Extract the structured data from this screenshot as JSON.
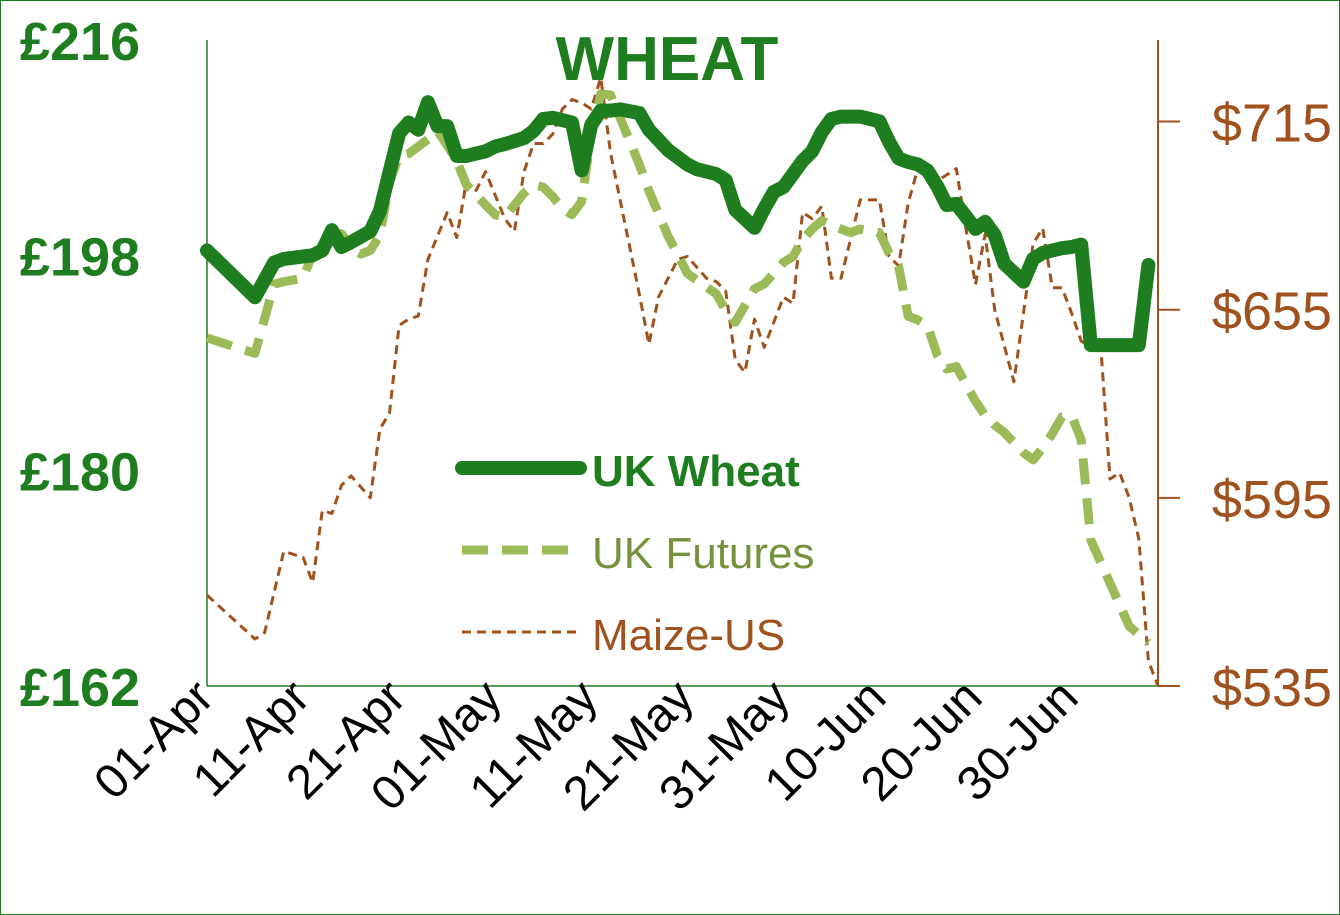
{
  "chart_data": {
    "type": "line",
    "title": "WHEAT",
    "x_tick_labels": [
      "01-Apr",
      "11-Apr",
      "21-Apr",
      "01-May",
      "11-May",
      "21-May",
      "31-May",
      "10-Jun",
      "20-Jun",
      "30-Jun"
    ],
    "y_left": {
      "tick_labels": [
        "£216",
        "£198",
        "£180",
        "£162"
      ],
      "ticks": [
        216,
        198,
        180,
        162
      ],
      "range": [
        162,
        216
      ]
    },
    "y_right": {
      "tick_labels": [
        "$715",
        "$655",
        "$595",
        "$535"
      ],
      "ticks": [
        715,
        655,
        595,
        535
      ],
      "range": [
        535,
        741
      ]
    },
    "grid": false,
    "legend_position": "center",
    "series": [
      {
        "name": "UK Wheat",
        "axis": "left",
        "color": "#1e7d1e",
        "style": "solid-thick",
        "x": [
          0,
          5,
          7,
          8,
          10,
          11,
          12,
          13,
          14,
          15,
          17,
          18,
          20,
          21,
          22,
          23,
          24,
          25,
          26,
          27,
          28,
          29,
          30,
          31,
          33,
          34,
          35,
          36,
          37,
          38,
          39,
          40,
          41,
          42,
          43,
          45,
          46,
          48,
          50,
          51,
          53,
          54,
          55,
          57,
          58,
          59,
          60,
          61,
          62,
          63,
          64,
          65,
          66,
          67,
          68,
          70,
          71,
          72,
          73,
          74,
          75,
          76,
          77,
          78,
          80,
          81,
          82,
          83,
          85,
          86,
          87,
          88,
          89,
          90,
          91,
          92,
          96,
          97,
          98
        ],
        "y": [
          198.4,
          194.5,
          197.4,
          197.7,
          197.9,
          198,
          198.4,
          200.1,
          198.7,
          199.1,
          200,
          201.7,
          208.2,
          209.1,
          208.5,
          210.8,
          208.8,
          208.8,
          206.3,
          206.3,
          206.5,
          206.7,
          207.1,
          207.3,
          207.8,
          208.4,
          209.4,
          209.5,
          209.3,
          209.1,
          205.1,
          208.9,
          210.1,
          210.1,
          210.2,
          209.9,
          208.5,
          206.8,
          205.6,
          205.2,
          204.8,
          204.3,
          201.8,
          200.3,
          201.9,
          203.3,
          203.7,
          204.8,
          205.9,
          206.7,
          208.3,
          209.4,
          209.6,
          209.6,
          209.6,
          209.2,
          207.5,
          206.1,
          205.8,
          205.6,
          205.1,
          203.8,
          202.2,
          202.3,
          200.2,
          200.8,
          199.7,
          197.3,
          195.8,
          197.7,
          198.2,
          198.4,
          198.6,
          198.7,
          198.9,
          190.5,
          190.5,
          190.5,
          197.2
        ]
      },
      {
        "name": "UK Futures",
        "axis": "left",
        "color": "#9bbb59",
        "style": "dashed",
        "x": [
          0,
          5,
          7,
          8,
          10,
          11,
          12,
          13,
          14,
          15,
          16,
          17,
          18,
          19,
          20,
          21,
          22,
          23,
          24,
          25,
          26,
          27,
          28,
          29,
          30,
          31,
          33,
          34,
          35,
          36,
          37,
          38,
          39,
          40,
          41,
          42,
          43,
          45,
          46,
          48,
          50,
          51,
          53,
          54,
          55,
          57,
          58,
          59,
          60,
          61,
          62,
          63,
          64,
          65,
          66,
          67,
          68,
          70,
          71,
          72,
          73,
          74,
          75,
          76,
          77,
          78,
          80,
          81,
          82,
          83,
          85,
          86,
          87,
          88,
          89,
          90,
          91,
          92,
          96,
          98
        ],
        "y": [
          191.1,
          189.8,
          195.6,
          195.8,
          196.1,
          198.1,
          198.5,
          199.4,
          199.8,
          198.6,
          198.1,
          198.4,
          199.7,
          204.1,
          206.3,
          206.5,
          207.1,
          207.7,
          208.4,
          207.2,
          205.9,
          203.9,
          203.1,
          202.2,
          201.4,
          201.2,
          203.2,
          203.9,
          203.7,
          202.9,
          201.9,
          201.4,
          202.5,
          208.1,
          211.5,
          211.4,
          209.5,
          205.6,
          203.4,
          199.6,
          196.5,
          195.9,
          194.8,
          193.4,
          192.4,
          195.2,
          195.6,
          196.5,
          197.4,
          197.9,
          199.3,
          200.2,
          200.9,
          200.5,
          200.2,
          199.9,
          200.2,
          199.9,
          198.2,
          197.1,
          192.9,
          192.6,
          192.1,
          189.7,
          188.5,
          188.7,
          185.8,
          184.6,
          183.8,
          183.2,
          181.5,
          180.9,
          181.9,
          183.1,
          184.5,
          184.6,
          182.6,
          174.2,
          167,
          165.6
        ]
      },
      {
        "name": "Maize-US",
        "axis": "right",
        "color": "#a0521e",
        "style": "dotted",
        "x": [
          0,
          5,
          6,
          8,
          10,
          11,
          12,
          13,
          14,
          15,
          17,
          18,
          19,
          20,
          21,
          22,
          23,
          25,
          26,
          27,
          28,
          29,
          31,
          32,
          33,
          34,
          35,
          36,
          37,
          38,
          39,
          40,
          41,
          42,
          43,
          45,
          46,
          47,
          49,
          50,
          52,
          53,
          54,
          55,
          56,
          57,
          58,
          60,
          61,
          62,
          63,
          64,
          65,
          66,
          68,
          70,
          71,
          72,
          73,
          74,
          76,
          78,
          79,
          80,
          81,
          82,
          84,
          86,
          87,
          88,
          89,
          90,
          91,
          92,
          93,
          94,
          95,
          96,
          97,
          98,
          99
        ],
        "y": [
          564,
          550,
          552,
          578,
          576,
          568,
          591,
          590,
          599,
          602,
          595,
          617,
          622,
          650,
          652,
          653,
          671,
          686,
          678,
          696,
          693,
          699,
          684,
          680,
          699,
          708,
          708,
          711,
          719,
          722,
          721,
          719,
          729,
          705,
          690,
          660,
          644,
          659,
          671,
          672,
          665,
          664,
          661,
          639,
          635,
          652,
          643,
          659,
          657,
          686,
          684,
          688,
          665,
          665,
          690,
          690,
          672,
          669,
          689,
          700,
          696,
          700,
          681,
          663,
          679,
          655,
          632,
          676,
          681,
          662,
          662,
          654,
          645,
          643,
          645,
          601,
          603,
          595,
          582,
          543,
          535
        ]
      }
    ]
  }
}
